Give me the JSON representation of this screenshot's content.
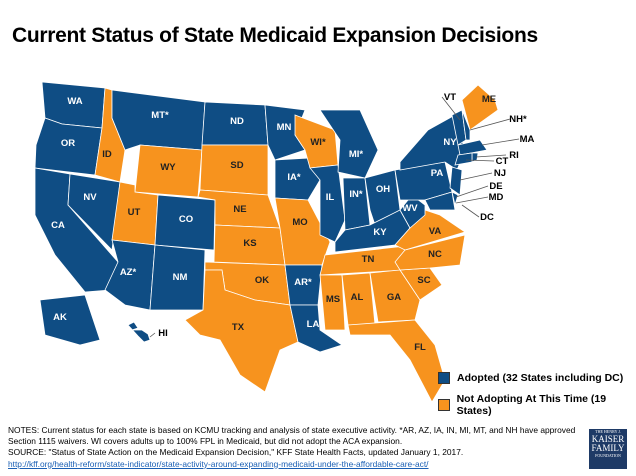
{
  "title": "Current Status of State Medicaid Expansion Decisions",
  "colors": {
    "adopted": "#0f4d84",
    "not_adopting": "#f7931e"
  },
  "legend": [
    {
      "status": "adopted",
      "label": "Adopted (32 States including  DC)"
    },
    {
      "status": "not_adopting",
      "label": "Not Adopting At This Time (19 States)"
    }
  ],
  "states": [
    {
      "code": "WA",
      "label": "WA",
      "status": "adopted"
    },
    {
      "code": "OR",
      "label": "OR",
      "status": "adopted"
    },
    {
      "code": "CA",
      "label": "CA",
      "status": "adopted"
    },
    {
      "code": "NV",
      "label": "NV",
      "status": "adopted"
    },
    {
      "code": "ID",
      "label": "ID",
      "status": "not_adopting"
    },
    {
      "code": "MT",
      "label": "MT*",
      "status": "adopted"
    },
    {
      "code": "WY",
      "label": "WY",
      "status": "not_adopting"
    },
    {
      "code": "UT",
      "label": "UT",
      "status": "not_adopting"
    },
    {
      "code": "AZ",
      "label": "AZ*",
      "status": "adopted"
    },
    {
      "code": "CO",
      "label": "CO",
      "status": "adopted"
    },
    {
      "code": "NM",
      "label": "NM",
      "status": "adopted"
    },
    {
      "code": "ND",
      "label": "ND",
      "status": "adopted"
    },
    {
      "code": "SD",
      "label": "SD",
      "status": "not_adopting"
    },
    {
      "code": "NE",
      "label": "NE",
      "status": "not_adopting"
    },
    {
      "code": "KS",
      "label": "KS",
      "status": "not_adopting"
    },
    {
      "code": "OK",
      "label": "OK",
      "status": "not_adopting"
    },
    {
      "code": "TX",
      "label": "TX",
      "status": "not_adopting"
    },
    {
      "code": "MN",
      "label": "MN",
      "status": "adopted"
    },
    {
      "code": "IA",
      "label": "IA*",
      "status": "adopted"
    },
    {
      "code": "MO",
      "label": "MO",
      "status": "not_adopting"
    },
    {
      "code": "AR",
      "label": "AR*",
      "status": "adopted"
    },
    {
      "code": "LA",
      "label": "LA",
      "status": "adopted"
    },
    {
      "code": "WI",
      "label": "WI*",
      "status": "not_adopting"
    },
    {
      "code": "IL",
      "label": "IL",
      "status": "adopted"
    },
    {
      "code": "MI",
      "label": "MI*",
      "status": "adopted"
    },
    {
      "code": "IN",
      "label": "IN*",
      "status": "adopted"
    },
    {
      "code": "OH",
      "label": "OH",
      "status": "adopted"
    },
    {
      "code": "KY",
      "label": "KY",
      "status": "adopted"
    },
    {
      "code": "TN",
      "label": "TN",
      "status": "not_adopting"
    },
    {
      "code": "MS",
      "label": "MS",
      "status": "not_adopting"
    },
    {
      "code": "AL",
      "label": "AL",
      "status": "not_adopting"
    },
    {
      "code": "GA",
      "label": "GA",
      "status": "not_adopting"
    },
    {
      "code": "FL",
      "label": "FL",
      "status": "not_adopting"
    },
    {
      "code": "SC",
      "label": "SC",
      "status": "not_adopting"
    },
    {
      "code": "NC",
      "label": "NC",
      "status": "not_adopting"
    },
    {
      "code": "VA",
      "label": "VA",
      "status": "not_adopting"
    },
    {
      "code": "WV",
      "label": "WV",
      "status": "adopted"
    },
    {
      "code": "PA",
      "label": "PA",
      "status": "adopted"
    },
    {
      "code": "NY",
      "label": "NY",
      "status": "adopted"
    },
    {
      "code": "ME",
      "label": "ME",
      "status": "not_adopting"
    },
    {
      "code": "VT",
      "label": "VT",
      "status": "adopted"
    },
    {
      "code": "NH",
      "label": "NH*",
      "status": "adopted"
    },
    {
      "code": "MA",
      "label": "MA",
      "status": "adopted"
    },
    {
      "code": "RI",
      "label": "RI",
      "status": "adopted"
    },
    {
      "code": "CT",
      "label": "CT",
      "status": "adopted"
    },
    {
      "code": "NJ",
      "label": "NJ",
      "status": "adopted"
    },
    {
      "code": "DE",
      "label": "DE",
      "status": "adopted"
    },
    {
      "code": "MD",
      "label": "MD",
      "status": "adopted"
    },
    {
      "code": "DC",
      "label": "DC",
      "status": "adopted"
    },
    {
      "code": "AK",
      "label": "AK",
      "status": "adopted"
    },
    {
      "code": "HI",
      "label": "HI",
      "status": "adopted"
    }
  ],
  "notes": {
    "line1": "NOTES: Current status for each state is based on KCMU  tracking and analysis of state executive activity. *AR, AZ, IA, IN, MI, MT, and NH have approved Section 1115 waivers. WI covers adults up to 100%  FPL in Medicaid, but did not adopt the ACA expansion.",
    "line2": "SOURCE:  \"Status of State Action on the Medicaid Expansion Decision,\" KFF State Health Facts, updated January 1, 2017.",
    "link": "http://kff.org/health-reform/state-indicator/state-activity-around-expanding-medicaid-under-the-affordable-care-act/"
  },
  "logo": {
    "top": "THE HENRY J.",
    "line1": "KAISER",
    "line2": "FAMILY",
    "bottom": "FOUNDATION"
  }
}
